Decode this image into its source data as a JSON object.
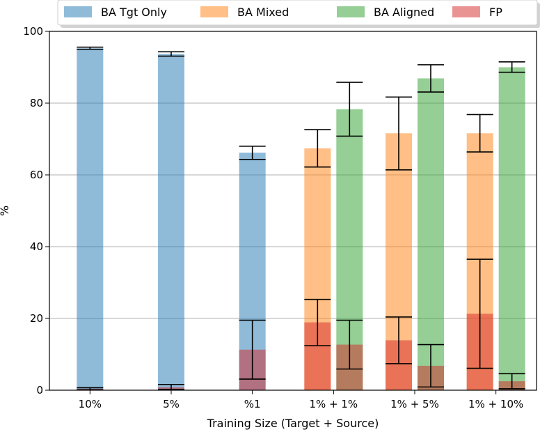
{
  "chart_data": {
    "type": "bar",
    "title": "",
    "xlabel": "Training Size (Target + Source)",
    "ylabel": "%",
    "ylim": [
      0,
      100
    ],
    "yticks": [
      0,
      20,
      40,
      60,
      80,
      100
    ],
    "grid": "horizontal",
    "legend_position": "top",
    "categories": [
      "10%",
      "5%",
      "%1",
      "1% + 1%",
      "1% + 5%",
      "1% + 10%"
    ],
    "series": [
      {
        "name": "BA Tgt Only",
        "color": "#1f77b4",
        "slot": "left",
        "values": [
          95.3,
          93.7,
          66.2,
          null,
          null,
          null
        ],
        "err_low": [
          95.0,
          93.1,
          64.3,
          null,
          null,
          null
        ],
        "err_high": [
          95.6,
          94.3,
          68.0,
          null,
          null,
          null
        ]
      },
      {
        "name": "BA Mixed",
        "color": "#ff7f0e",
        "slot": "left",
        "values": [
          null,
          null,
          null,
          67.4,
          71.6,
          71.6
        ],
        "err_low": [
          null,
          null,
          null,
          62.2,
          61.4,
          66.4
        ],
        "err_high": [
          null,
          null,
          null,
          72.6,
          81.7,
          76.8
        ]
      },
      {
        "name": "BA Aligned",
        "color": "#2ca02c",
        "slot": "right",
        "values": [
          null,
          null,
          null,
          78.3,
          86.9,
          90.0
        ],
        "err_low": [
          null,
          null,
          null,
          70.8,
          83.1,
          88.6
        ],
        "err_high": [
          null,
          null,
          null,
          85.8,
          90.7,
          91.5
        ]
      },
      {
        "name": "FP",
        "color": "#d62728",
        "slot": "both",
        "values": [
          [
            0.4,
            null
          ],
          [
            0.8,
            null
          ],
          [
            11.3,
            null
          ],
          [
            18.9,
            12.7
          ],
          [
            13.9,
            6.8
          ],
          [
            21.3,
            2.5
          ]
        ],
        "err_low": [
          [
            0.1,
            null
          ],
          [
            0.2,
            null
          ],
          [
            3.1,
            null
          ],
          [
            12.4,
            5.9
          ],
          [
            7.4,
            0.9
          ],
          [
            6.1,
            0.4
          ]
        ],
        "err_high": [
          [
            0.7,
            null
          ],
          [
            1.6,
            null
          ],
          [
            19.5,
            null
          ],
          [
            25.3,
            19.5
          ],
          [
            20.4,
            12.7
          ],
          [
            36.5,
            4.6
          ]
        ]
      }
    ]
  }
}
